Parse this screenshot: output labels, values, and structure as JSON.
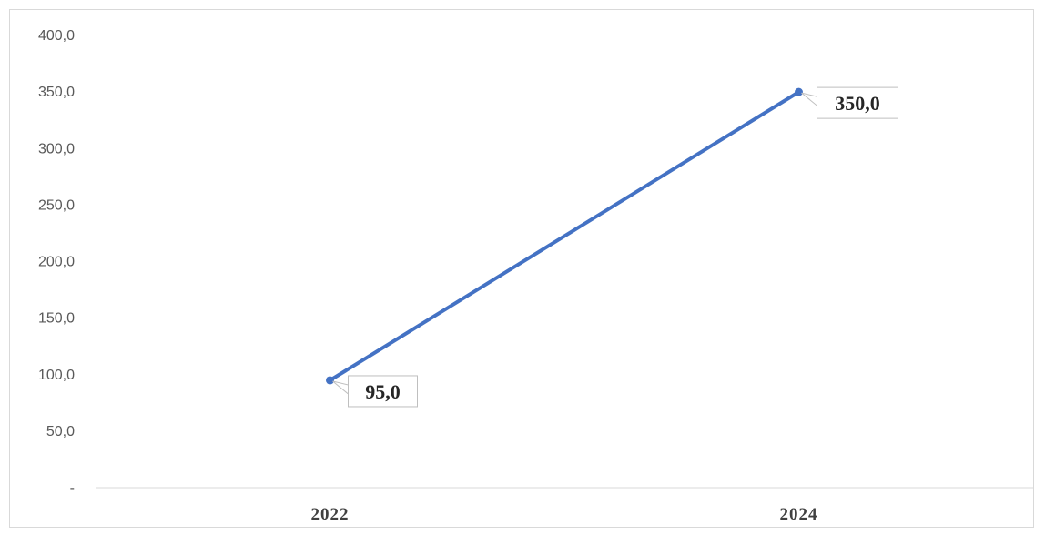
{
  "chart_data": {
    "type": "line",
    "title": "",
    "xlabel": "",
    "ylabel": "",
    "categories": [
      "2022",
      "2024"
    ],
    "series": [
      {
        "values": [
          95.0,
          350.0
        ],
        "color": "#4472c4",
        "data_labels": [
          "95,0",
          "350,0"
        ]
      }
    ],
    "ylim": [
      0,
      400
    ],
    "yticks": [
      0,
      50,
      100,
      150,
      200,
      250,
      300,
      350,
      400
    ],
    "ytick_labels": [
      "-",
      "50,0",
      "100,0",
      "150,0",
      "200,0",
      "250,0",
      "300,0",
      "350,0",
      "400,0"
    ],
    "grid": false,
    "legend": "none"
  }
}
